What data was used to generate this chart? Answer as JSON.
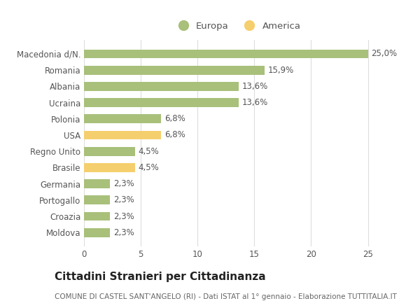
{
  "categories": [
    "Macedonia d/N.",
    "Romania",
    "Albania",
    "Ucraina",
    "Polonia",
    "USA",
    "Regno Unito",
    "Brasile",
    "Germania",
    "Portogallo",
    "Croazia",
    "Moldova"
  ],
  "values": [
    25.0,
    15.9,
    13.6,
    13.6,
    6.8,
    6.8,
    4.5,
    4.5,
    2.3,
    2.3,
    2.3,
    2.3
  ],
  "labels": [
    "25,0%",
    "15,9%",
    "13,6%",
    "13,6%",
    "6,8%",
    "6,8%",
    "4,5%",
    "4,5%",
    "2,3%",
    "2,3%",
    "2,3%",
    "2,3%"
  ],
  "colors": [
    "#a8c07a",
    "#a8c07a",
    "#a8c07a",
    "#a8c07a",
    "#a8c07a",
    "#f5cf6e",
    "#a8c07a",
    "#f5cf6e",
    "#a8c07a",
    "#a8c07a",
    "#a8c07a",
    "#a8c07a"
  ],
  "legend_europa_color": "#a8c07a",
  "legend_america_color": "#f5cf6e",
  "title": "Cittadini Stranieri per Cittadinanza",
  "subtitle": "COMUNE DI CASTEL SANT'ANGELO (RI) - Dati ISTAT al 1° gennaio - Elaborazione TUTTITALIA.IT",
  "xlim": [
    0,
    27
  ],
  "background_color": "#ffffff",
  "grid_color": "#dddddd",
  "bar_height": 0.55,
  "title_fontsize": 11,
  "subtitle_fontsize": 7.5,
  "tick_fontsize": 8.5,
  "label_fontsize": 8.5,
  "legend_fontsize": 9.5,
  "label_color": "#555555",
  "tick_color": "#555555"
}
